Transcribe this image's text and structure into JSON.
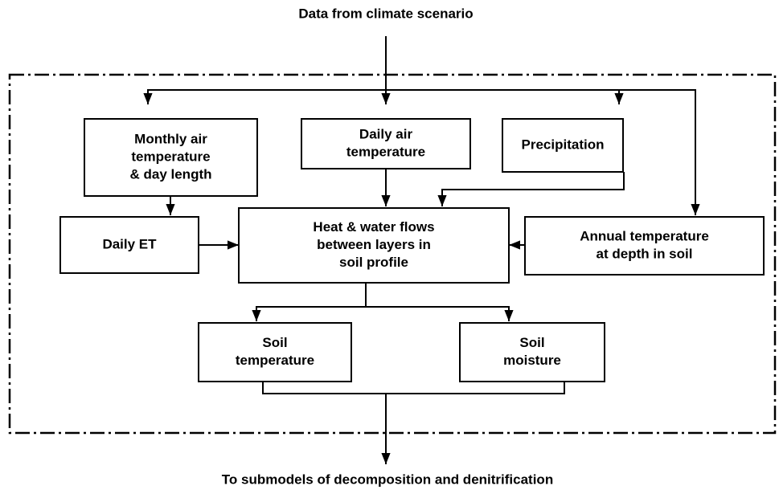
{
  "header": {
    "top": "Data from climate scenario",
    "bottom": "To submodels of decomposition and denitrification"
  },
  "nodes": [
    {
      "lines": [
        "Monthly air",
        "temperature",
        "& day length"
      ]
    },
    {
      "lines": [
        "Daily air",
        "temperature"
      ]
    },
    {
      "lines": [
        "Precipitation"
      ]
    },
    {
      "lines": [
        "Daily ET"
      ]
    },
    {
      "lines": [
        "Heat & water flows",
        "between layers in",
        "soil profile"
      ]
    },
    {
      "lines": [
        "Annual temperature",
        "at depth in soil"
      ]
    },
    {
      "lines": [
        "Soil",
        "temperature"
      ]
    },
    {
      "lines": [
        "Soil",
        "moisture"
      ]
    }
  ]
}
